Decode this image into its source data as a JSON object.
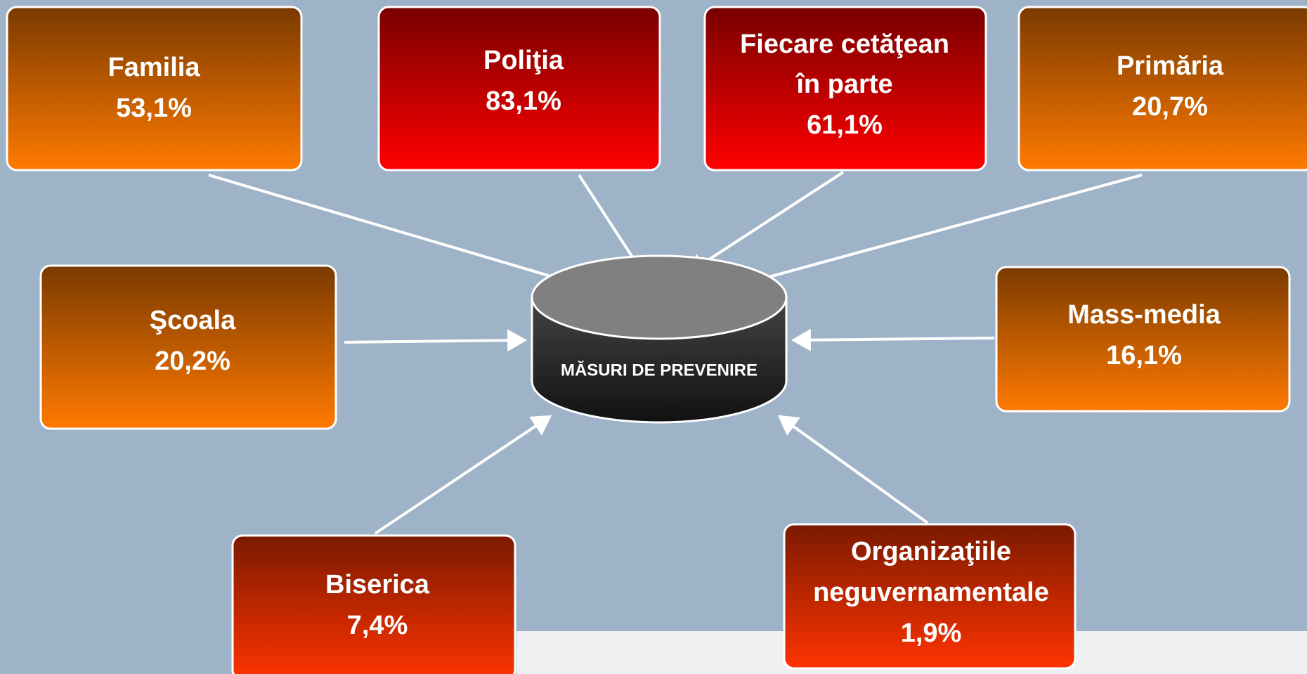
{
  "center": {
    "label": "MĂSURI DE PREVENIRE"
  },
  "nodes": [
    {
      "label": [
        "Familia"
      ],
      "value": "53,1%"
    },
    {
      "label": [
        "Poliţia"
      ],
      "value": "83,1%"
    },
    {
      "label": [
        "Fiecare cetăţean",
        "în parte"
      ],
      "value": "61,1%"
    },
    {
      "label": [
        "Primăria"
      ],
      "value": "20,7%"
    },
    {
      "label": [
        "Şcoala"
      ],
      "value": "20,2%"
    },
    {
      "label": [
        "Mass-media"
      ],
      "value": "16,1%"
    },
    {
      "label": [
        "Biserica"
      ],
      "value": "7,4%"
    },
    {
      "label": [
        "Organizaţiile",
        "neguvernamentale"
      ],
      "value": "1,9%"
    }
  ]
}
